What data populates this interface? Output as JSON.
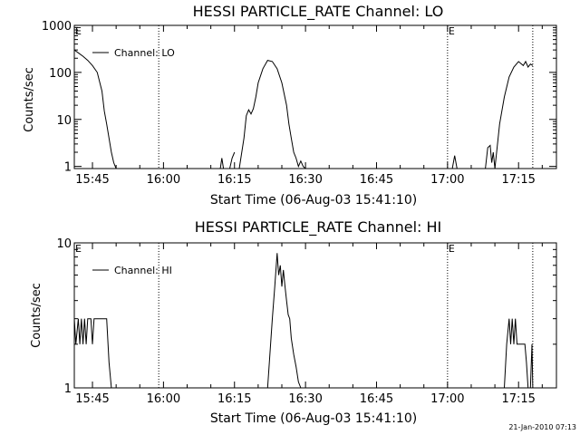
{
  "footer": "21-Jan-2010 07:13",
  "chart_data": [
    {
      "type": "line",
      "title": "HESSI PARTICLE_RATE Channel: LO",
      "xlabel": "Start Time (06-Aug-03 15:41:10)",
      "ylabel": "Counts/sec",
      "yscale": "log",
      "xlim": [
        "15:41:10",
        "17:23:00"
      ],
      "ylim": [
        0.9,
        1000
      ],
      "x_ticks": [
        "15:45",
        "16:00",
        "16:15",
        "16:30",
        "16:45",
        "17:00",
        "17:15"
      ],
      "y_ticks": [
        "1",
        "10",
        "100",
        "1000"
      ],
      "legend": "top-left",
      "grid": false,
      "markers": [
        {
          "time": "15:41:10",
          "label": "E",
          "vline": false
        },
        {
          "time": "15:59:00",
          "label": "",
          "vline": true
        },
        {
          "time": "17:00:00",
          "label": "E",
          "vline": true
        },
        {
          "time": "17:18:00",
          "label": "",
          "vline": true
        }
      ],
      "series": [
        {
          "name": "Channel: LO",
          "x": [
            "15:41:10",
            "15:42:00",
            "15:43:00",
            "15:44:00",
            "15:45:00",
            "15:46:00",
            "15:47:00",
            "15:47:30",
            "15:48:00",
            "15:48:30",
            "15:49:00",
            "15:49:30",
            "15:50:00",
            null,
            "16:12:00",
            "16:12:20",
            "16:12:40",
            null,
            "16:14:00",
            "16:14:30",
            "16:15:00",
            null,
            "16:16:00",
            "16:17:00",
            "16:17:30",
            "16:18:00",
            "16:18:30",
            "16:19:00",
            "16:19:30",
            "16:20:00",
            "16:21:00",
            "16:22:00",
            "16:23:00",
            "16:24:00",
            "16:25:00",
            "16:26:00",
            "16:26:30",
            "16:27:00",
            "16:27:30",
            "16:28:00",
            "16:28:30",
            "16:29:00",
            "16:29:30",
            "16:30:00",
            null,
            "17:01:00",
            "17:01:30",
            "17:02:00",
            null,
            "17:08:00",
            "17:08:30",
            "17:09:00",
            "17:09:20",
            "17:09:40",
            "17:10:00",
            "17:11:00",
            "17:12:00",
            "17:13:00",
            "17:14:00",
            "17:15:00",
            "17:16:00",
            "17:16:30",
            "17:17:00",
            "17:17:30",
            "17:18:00"
          ],
          "y": [
            300,
            260,
            220,
            180,
            140,
            100,
            40,
            15,
            8,
            4,
            2,
            1.2,
            0.9,
            null,
            0.9,
            1.5,
            0.9,
            null,
            0.9,
            1.5,
            2,
            null,
            0.9,
            4,
            12,
            16,
            13,
            17,
            30,
            60,
            120,
            180,
            170,
            120,
            60,
            20,
            8,
            4,
            2,
            1.5,
            1,
            1.3,
            1,
            0.9,
            null,
            0.9,
            1.7,
            0.9,
            null,
            0.9,
            2.5,
            2.8,
            1.2,
            2,
            0.9,
            8,
            30,
            80,
            130,
            170,
            140,
            170,
            130,
            150,
            140
          ]
        }
      ]
    },
    {
      "type": "line",
      "title": "HESSI PARTICLE_RATE Channel: HI",
      "xlabel": "Start Time (06-Aug-03 15:41:10)",
      "ylabel": "Counts/sec",
      "yscale": "log",
      "xlim": [
        "15:41:10",
        "17:23:00"
      ],
      "ylim": [
        1,
        10
      ],
      "x_ticks": [
        "15:45",
        "16:00",
        "16:15",
        "16:30",
        "16:45",
        "17:00",
        "17:15"
      ],
      "y_ticks": [
        "1",
        "10"
      ],
      "legend": "top-left",
      "grid": false,
      "markers": [
        {
          "time": "15:41:10",
          "label": "E",
          "vline": false
        },
        {
          "time": "15:59:00",
          "label": "",
          "vline": true
        },
        {
          "time": "17:00:00",
          "label": "E",
          "vline": true
        },
        {
          "time": "17:18:00",
          "label": "",
          "vline": true
        }
      ],
      "series": [
        {
          "name": "Channel: HI",
          "x": [
            "15:41:10",
            "15:41:30",
            "15:42:00",
            "15:42:20",
            "15:42:40",
            "15:43:00",
            "15:43:20",
            "15:43:40",
            "15:44:00",
            "15:44:20",
            "15:44:40",
            "15:45:00",
            "15:45:20",
            "15:45:40",
            "15:46:00",
            "15:46:20",
            "15:46:40",
            "15:47:00",
            "15:47:20",
            "15:47:40",
            "15:48:00",
            "15:48:30",
            "15:49:00",
            null,
            "16:22:00",
            "16:23:00",
            "16:23:30",
            "16:24:00",
            "16:24:20",
            "16:24:40",
            "16:25:00",
            "16:25:20",
            "16:25:40",
            "16:26:00",
            "16:26:20",
            "16:26:40",
            "16:27:00",
            "16:27:30",
            "16:28:00",
            "16:28:30",
            "16:29:00",
            null,
            "17:12:00",
            "17:12:30",
            "17:13:00",
            "17:13:20",
            "17:13:40",
            "17:14:00",
            "17:14:20",
            "17:14:40",
            "17:15:00",
            "17:15:20",
            "17:15:40",
            "17:16:00",
            "17:16:20",
            "17:16:40",
            "17:17:00",
            null,
            "17:17:30",
            "17:17:50",
            "17:18:00"
          ],
          "y": [
            3,
            2,
            3,
            2,
            3,
            2,
            3,
            2,
            3,
            3,
            3,
            2,
            3,
            3,
            3,
            3,
            3,
            3,
            3,
            3,
            3,
            1.5,
            1,
            null,
            1,
            3,
            5,
            8.5,
            6,
            7,
            5,
            6.5,
            5,
            4,
            3.2,
            3,
            2.2,
            1.7,
            1.4,
            1.1,
            1,
            null,
            1,
            2,
            3,
            2,
            3,
            2,
            3,
            2,
            2,
            2,
            2,
            2,
            2,
            1.5,
            1,
            null,
            1,
            2,
            1
          ]
        }
      ]
    }
  ]
}
